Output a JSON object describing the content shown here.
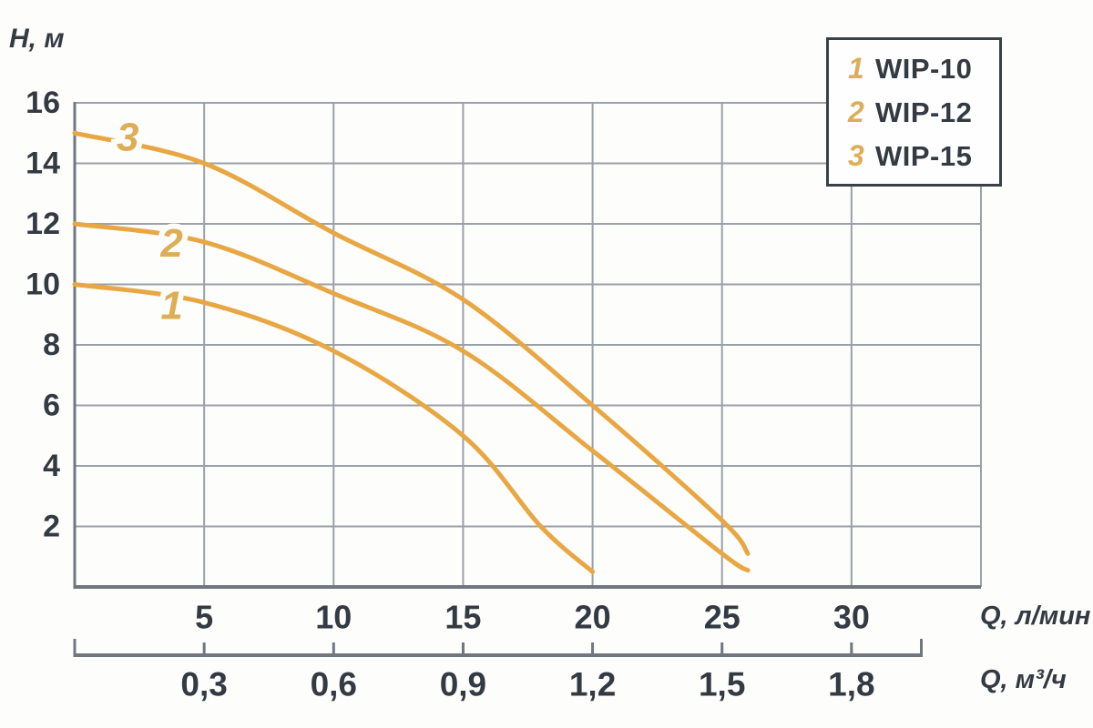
{
  "figure": {
    "y_axis_title": "H, м",
    "x_axis_title_primary": "Q, л/мин",
    "x_axis_title_secondary": "Q, м³/ч"
  },
  "legend": {
    "items": [
      {
        "num": "1",
        "label": "WIP-10"
      },
      {
        "num": "2",
        "label": "WIP-12"
      },
      {
        "num": "3",
        "label": "WIP-15"
      }
    ]
  },
  "chart_data": {
    "type": "line",
    "title": "",
    "xlabel": "Q, л/мин",
    "xlabel_secondary": "Q, м³/ч",
    "ylabel": "H, м",
    "xlim": [
      0,
      35
    ],
    "ylim": [
      0,
      16
    ],
    "grid": true,
    "legend_position": "top-right",
    "x_ticks_lmin": [
      5,
      10,
      15,
      20,
      25,
      30
    ],
    "x_ticks_m3h_labels": [
      "0,3",
      "0,6",
      "0,9",
      "1,2",
      "1,5",
      "1,8"
    ],
    "y_ticks": [
      16,
      14,
      12,
      10,
      8,
      6,
      4,
      2
    ],
    "series": [
      {
        "name": "WIP-10",
        "curve_number": "1",
        "label_at": {
          "q": 3.75,
          "h": 9.3
        },
        "points_q_lmin_h_m": [
          [
            0,
            10
          ],
          [
            5,
            9.4
          ],
          [
            10,
            7.8
          ],
          [
            15,
            5.0
          ],
          [
            18,
            2.0
          ],
          [
            20,
            0.5
          ]
        ]
      },
      {
        "name": "WIP-12",
        "curve_number": "2",
        "label_at": {
          "q": 3.75,
          "h": 11.35
        },
        "points_q_lmin_h_m": [
          [
            0,
            12
          ],
          [
            5,
            11.4
          ],
          [
            10,
            9.7
          ],
          [
            15,
            7.8
          ],
          [
            20,
            4.5
          ],
          [
            25,
            1.1
          ],
          [
            26,
            0.55
          ]
        ]
      },
      {
        "name": "WIP-15",
        "curve_number": "3",
        "label_at": {
          "q": 2.05,
          "h": 14.85
        },
        "points_q_lmin_h_m": [
          [
            0,
            15
          ],
          [
            5,
            14
          ],
          [
            10,
            11.7
          ],
          [
            15,
            9.5
          ],
          [
            20,
            6.0
          ],
          [
            25,
            2.2
          ],
          [
            26,
            1.1
          ]
        ]
      }
    ],
    "colors": {
      "curve": "#e8a743",
      "curve_label": "#ddae55",
      "text": "#343a42",
      "grid": "#9ba1a8",
      "axis": "#71777e",
      "legend_border": "#3b4046",
      "background": "#fdfdfc"
    }
  }
}
